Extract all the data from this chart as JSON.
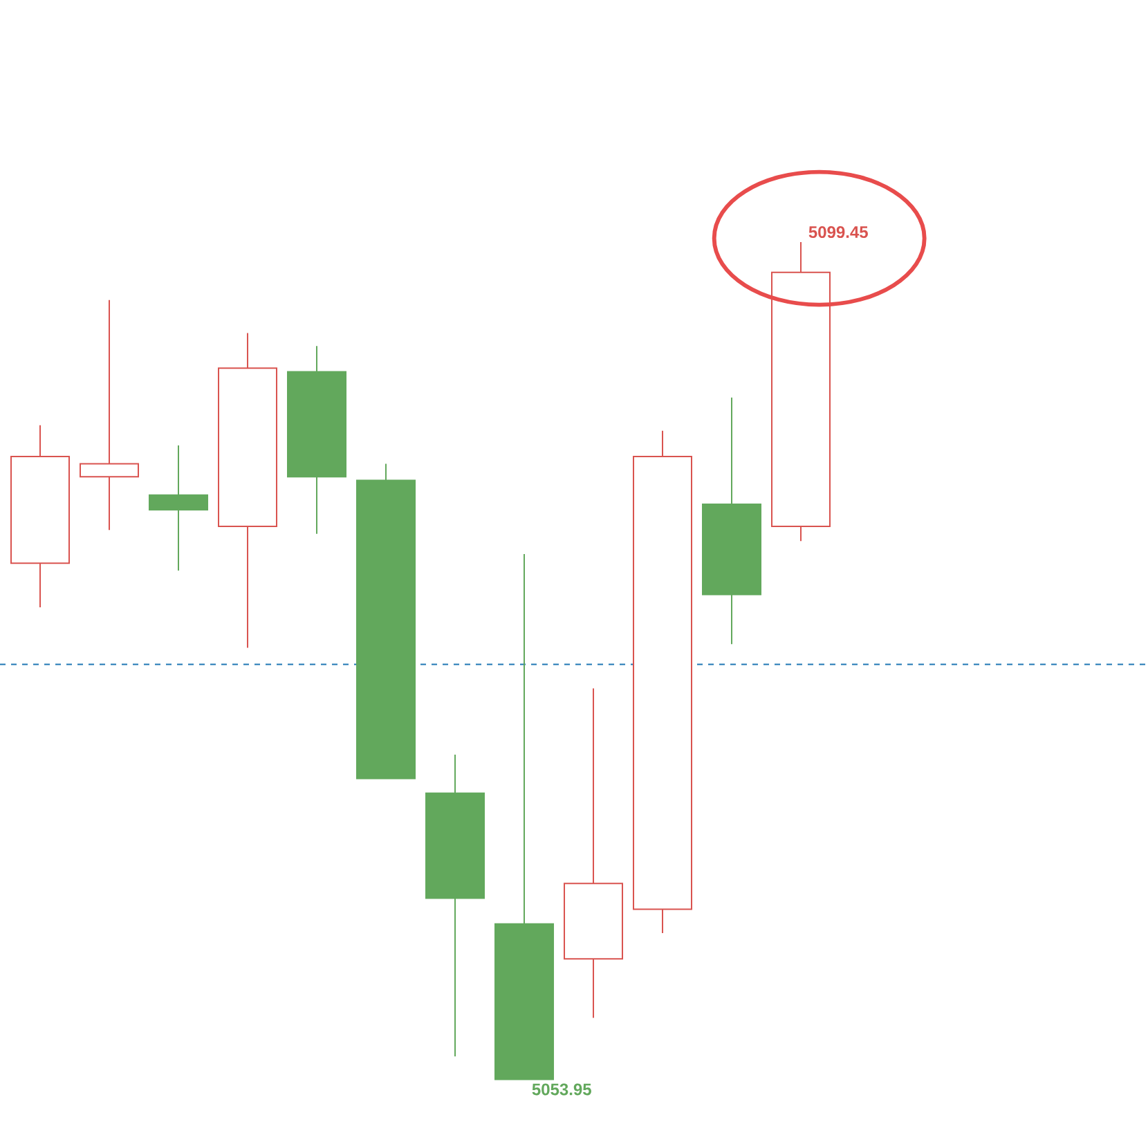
{
  "chart_data": {
    "type": "candlestick",
    "categories": [
      null,
      null,
      null,
      null,
      null,
      null,
      null,
      null,
      null,
      null,
      null,
      null
    ],
    "ohlc": [
      [
        5082.0,
        5089.5,
        5079.6,
        5087.8
      ],
      [
        5086.7,
        5096.3,
        5083.8,
        5087.4
      ],
      [
        5085.7,
        5088.4,
        5081.6,
        5084.9
      ],
      [
        5084.0,
        5094.5,
        5077.4,
        5092.6
      ],
      [
        5092.4,
        5093.8,
        5083.6,
        5086.7
      ],
      [
        5086.5,
        5087.4,
        5070.3,
        5070.3
      ],
      [
        5069.5,
        5071.6,
        5055.2,
        5063.8
      ],
      [
        5062.4,
        5082.5,
        5053.95,
        5053.95
      ],
      [
        5060.5,
        5075.2,
        5057.3,
        5064.6
      ],
      [
        5063.2,
        5089.2,
        5061.9,
        5087.8
      ],
      [
        5085.2,
        5091.0,
        5077.6,
        5080.3
      ],
      [
        5084.0,
        5099.45,
        5083.2,
        5097.8
      ]
    ],
    "colors": [
      "#d9534f",
      "#d9534f",
      "#62a85c",
      "#d9534f",
      "#62a85c",
      "#62a85c",
      "#62a85c",
      "#62a85c",
      "#d9534f",
      "#d9534f",
      "#62a85c",
      "#d9534f"
    ],
    "annotations": [
      "5099.45",
      "5053.95"
    ],
    "ref_lines": [
      {
        "axis": "y",
        "value": 5076.5,
        "color": "#1f77b4",
        "line_style": "dashed"
      }
    ]
  }
}
